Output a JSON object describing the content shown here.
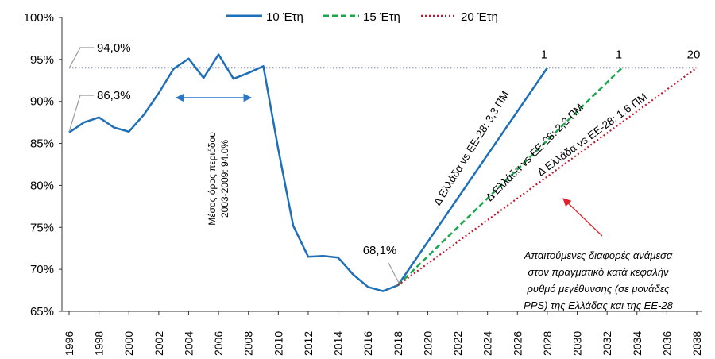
{
  "chart_data": {
    "type": "line",
    "title": "",
    "xlabel": "",
    "ylabel": "",
    "ylim": [
      0.65,
      1.0
    ],
    "xlim": [
      1996,
      2038
    ],
    "y_ticks": [
      {
        "value": 0.65,
        "label": "65%"
      },
      {
        "value": 0.7,
        "label": "70%"
      },
      {
        "value": 0.75,
        "label": "75%"
      },
      {
        "value": 0.8,
        "label": "80%"
      },
      {
        "value": 0.85,
        "label": "85%"
      },
      {
        "value": 0.9,
        "label": "90%"
      },
      {
        "value": 0.95,
        "label": "95%"
      },
      {
        "value": 1.0,
        "label": "100%"
      }
    ],
    "x_ticks": [
      {
        "value": 1996,
        "label": "1996"
      },
      {
        "value": 1998,
        "label": "1998"
      },
      {
        "value": 2000,
        "label": "2000"
      },
      {
        "value": 2002,
        "label": "2002"
      },
      {
        "value": 2004,
        "label": "2004"
      },
      {
        "value": 2006,
        "label": "2006"
      },
      {
        "value": 2008,
        "label": "2008"
      },
      {
        "value": 2010,
        "label": "2010"
      },
      {
        "value": 2012,
        "label": "2012"
      },
      {
        "value": 2014,
        "label": "2014"
      },
      {
        "value": 2016,
        "label": "2016"
      },
      {
        "value": 2018,
        "label": "2018"
      },
      {
        "value": 2020,
        "label": "2020"
      },
      {
        "value": 2022,
        "label": "2022"
      },
      {
        "value": 2024,
        "label": "2024"
      },
      {
        "value": 2026,
        "label": "2026"
      },
      {
        "value": 2028,
        "label": "2028"
      },
      {
        "value": 2030,
        "label": "2030"
      },
      {
        "value": 2032,
        "label": "2032"
      },
      {
        "value": 2034,
        "label": "2034"
      },
      {
        "value": 2036,
        "label": "2036"
      },
      {
        "value": 2038,
        "label": "2038"
      }
    ],
    "colors": {
      "historical": "#1f6fb8",
      "s10": "#1f6fb8",
      "s15": "#1aa64a",
      "s20": "#c0192b",
      "reference": "#1a2a5a",
      "annotation_arrow": "#2a76c6",
      "red_arrow": "#e0202a",
      "axis": "#333333",
      "callout": "#999999"
    },
    "historical": {
      "name": "",
      "x": [
        1996,
        1997,
        1998,
        1999,
        2000,
        2001,
        2002,
        2003,
        2004,
        2005,
        2006,
        2007,
        2008,
        2009,
        2010,
        2011,
        2012,
        2013,
        2014,
        2015,
        2016,
        2017,
        2018
      ],
      "y": [
        0.863,
        0.875,
        0.881,
        0.869,
        0.864,
        0.884,
        0.91,
        0.939,
        0.951,
        0.928,
        0.956,
        0.927,
        0.934,
        0.942,
        0.843,
        0.752,
        0.715,
        0.716,
        0.714,
        0.694,
        0.679,
        0.674,
        0.681
      ]
    },
    "series": [
      {
        "name": "10 Έτη",
        "style": "solid",
        "x": [
          2018,
          2028
        ],
        "y": [
          0.681,
          0.94
        ],
        "end_label": "1"
      },
      {
        "name": "15 Έτη",
        "style": "dashed",
        "x": [
          2018,
          2033
        ],
        "y": [
          0.681,
          0.94
        ],
        "end_label": "1"
      },
      {
        "name": "20 Έτη",
        "style": "dotted",
        "x": [
          2018,
          2038
        ],
        "y": [
          0.681,
          0.94
        ],
        "end_label": "20"
      }
    ],
    "reference_line": {
      "value": 0.94,
      "x_from": 1996,
      "x_to": 2038
    },
    "annotations": {
      "label_94": "94,0%",
      "label_86": "86,3%",
      "label_68": "68,1%",
      "period_avg_line1": "Μέσος όρος περιόδου",
      "period_avg_line2": "2003-2009: 94.0%",
      "gap_10": "Δ Ελλάδα vs ΕΕ-28: 3,3 ΠΜ",
      "gap_15": "Δ Ελλάδα vs ΕΕ-28: 2,2 ΠΜ",
      "gap_20": "Δ Ελλάδα vs ΕΕ-28: 1.6 ΠΜ",
      "note_line1": "Απαιτούμενες διαφορές ανάμεσα",
      "note_line2": "στον πραγματικό κατά κεφαλήν",
      "note_line3": "ρυθμό μεγέθυνσης (σε μονάδες",
      "note_line4": "PPS) της Ελλάδας και της ΕΕ-28"
    },
    "legend": [
      {
        "label": "10 Έτη",
        "style": "solid"
      },
      {
        "label": "15 Έτη",
        "style": "dashed"
      },
      {
        "label": "20 Έτη",
        "style": "dotted"
      }
    ],
    "legend_position": "top-center",
    "grid": false
  }
}
